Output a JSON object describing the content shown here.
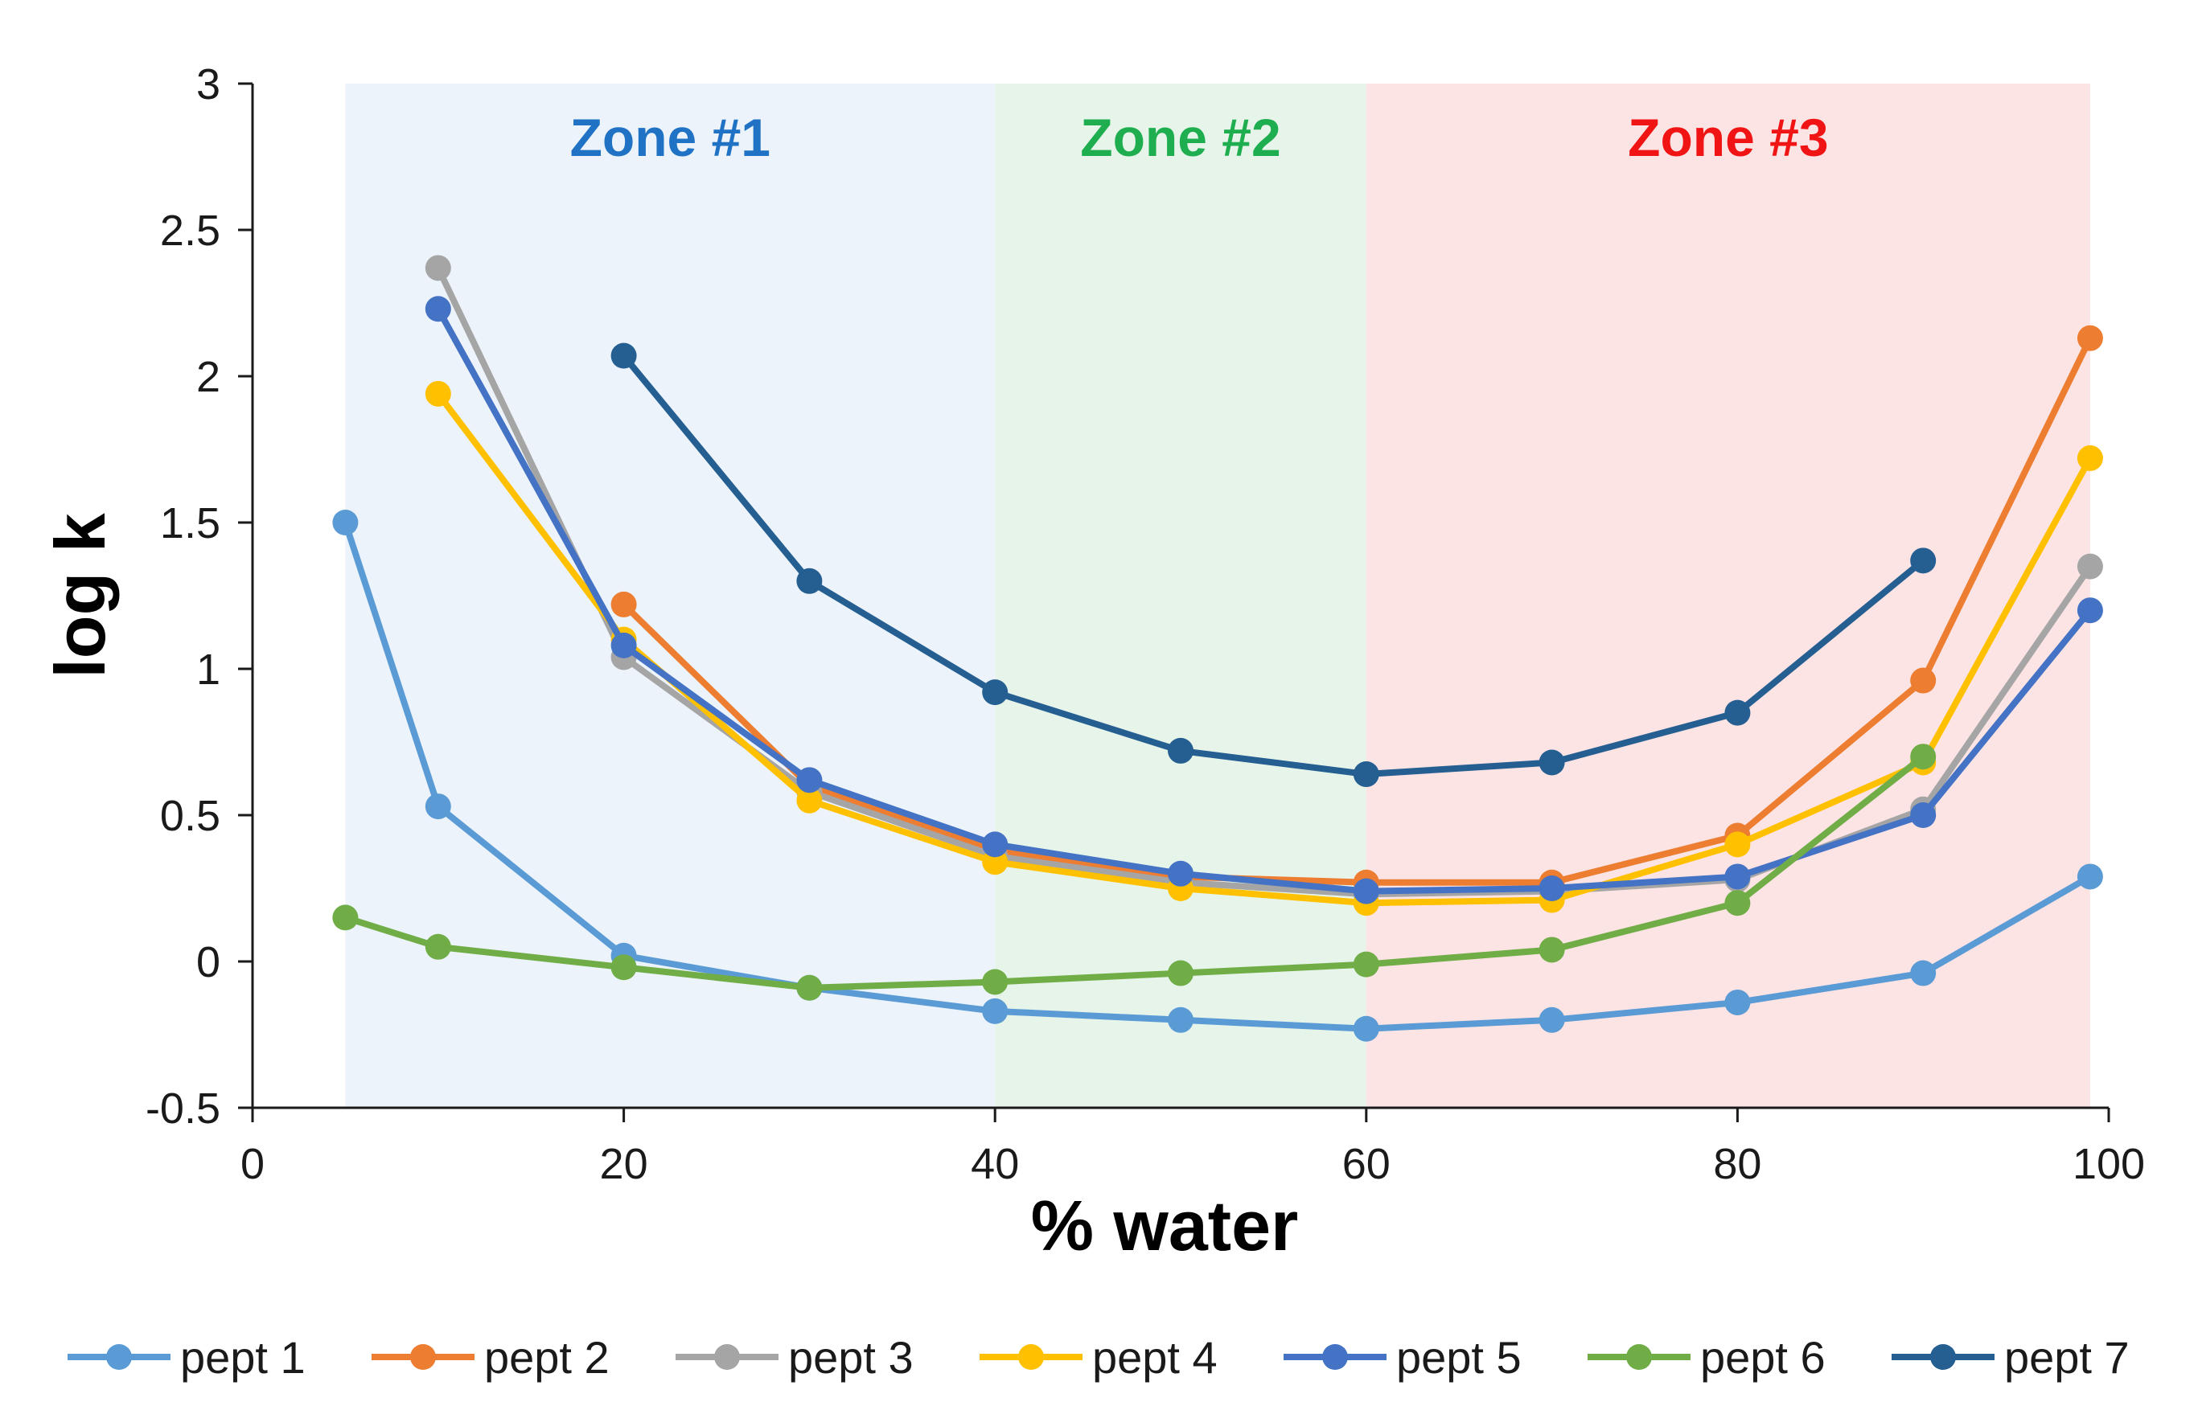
{
  "chart_data": {
    "type": "line",
    "xlabel": "% water",
    "ylabel": "log k",
    "xlim": [
      0,
      100
    ],
    "ylim": [
      -0.5,
      3
    ],
    "xticks": [
      0,
      20,
      40,
      60,
      80,
      100
    ],
    "yticks": [
      -0.5,
      0,
      0.5,
      1,
      1.5,
      2,
      2.5,
      3
    ],
    "grid": false,
    "legend_position": "bottom",
    "zones": [
      {
        "label": "Zone #1",
        "x_start": 5,
        "x_end": 40,
        "fill": "#ecf3fa",
        "text_color": "#1f72c4"
      },
      {
        "label": "Zone #2",
        "x_start": 40,
        "x_end": 60,
        "fill": "#e6f4ea",
        "text_color": "#1fae4f"
      },
      {
        "label": "Zone #3",
        "x_start": 60,
        "x_end": 99,
        "fill": "#fde4e4",
        "text_color": "#f01414"
      }
    ],
    "series": [
      {
        "name": "pept 1",
        "color": "#5b9bd5",
        "x": [
          5,
          10,
          20,
          30,
          40,
          50,
          60,
          70,
          80,
          90,
          99
        ],
        "y": [
          1.5,
          0.53,
          0.02,
          -0.09,
          -0.17,
          -0.2,
          -0.23,
          -0.2,
          -0.14,
          -0.04,
          0.29
        ]
      },
      {
        "name": "pept 2",
        "color": "#ed7d31",
        "x": [
          20,
          30,
          40,
          50,
          60,
          70,
          80,
          90,
          99
        ],
        "y": [
          1.22,
          0.6,
          0.38,
          0.29,
          0.27,
          0.27,
          0.43,
          0.96,
          2.13
        ]
      },
      {
        "name": "pept 3",
        "color": "#a5a5a5",
        "x": [
          10,
          20,
          30,
          40,
          50,
          60,
          70,
          80,
          90,
          99
        ],
        "y": [
          2.37,
          1.04,
          0.58,
          0.36,
          0.27,
          0.23,
          0.24,
          0.28,
          0.52,
          1.35
        ]
      },
      {
        "name": "pept 4",
        "color": "#ffc000",
        "x": [
          10,
          20,
          30,
          40,
          50,
          60,
          70,
          80,
          90,
          99
        ],
        "y": [
          1.94,
          1.1,
          0.55,
          0.34,
          0.25,
          0.2,
          0.21,
          0.4,
          0.68,
          1.72
        ]
      },
      {
        "name": "pept 5",
        "color": "#4472c4",
        "x": [
          10,
          20,
          30,
          40,
          50,
          60,
          70,
          80,
          90,
          99
        ],
        "y": [
          2.23,
          1.08,
          0.62,
          0.4,
          0.3,
          0.24,
          0.25,
          0.29,
          0.5,
          1.2
        ]
      },
      {
        "name": "pept 6",
        "color": "#70ad47",
        "x": [
          5,
          10,
          20,
          30,
          40,
          50,
          60,
          70,
          80,
          90
        ],
        "y": [
          0.15,
          0.05,
          -0.02,
          -0.09,
          -0.07,
          -0.04,
          -0.01,
          0.04,
          0.2,
          0.7
        ]
      },
      {
        "name": "pept 7",
        "color": "#255e91",
        "x": [
          20,
          30,
          40,
          50,
          60,
          70,
          80,
          90
        ],
        "y": [
          2.07,
          1.3,
          0.92,
          0.72,
          0.64,
          0.68,
          0.85,
          1.37
        ]
      }
    ]
  }
}
